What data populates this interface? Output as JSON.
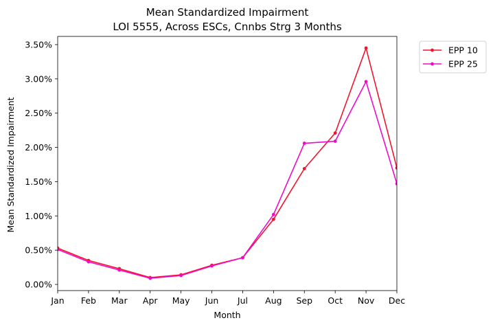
{
  "chart_data": {
    "type": "line",
    "title": "Mean Standardized Impairment",
    "subtitle": "LOI 5555, Across ESCs, Cnnbs Strg 3 Months",
    "xlabel": "Month",
    "ylabel": "Mean Standardized Impairment",
    "categories": [
      "Jan",
      "Feb",
      "Mar",
      "Apr",
      "May",
      "Jun",
      "Jul",
      "Aug",
      "Sep",
      "Oct",
      "Nov",
      "Dec"
    ],
    "y_ticks": [
      0.0,
      0.5,
      1.0,
      1.5,
      2.0,
      2.5,
      3.0,
      3.5
    ],
    "y_tick_labels": [
      "0.00%",
      "0.50%",
      "1.00%",
      "1.50%",
      "2.00%",
      "2.50%",
      "3.00%",
      "3.50%"
    ],
    "ylim": [
      -0.09,
      3.62
    ],
    "y_unit": "percent",
    "grid": false,
    "legend_position": "outside top-right",
    "series": [
      {
        "name": "EPP 10",
        "color": "#f0142c",
        "values": [
          0.53,
          0.35,
          0.23,
          0.1,
          0.14,
          0.28,
          0.39,
          0.95,
          1.69,
          2.21,
          3.45,
          1.7
        ]
      },
      {
        "name": "EPP 25",
        "color": "#f00ac8",
        "values": [
          0.51,
          0.33,
          0.21,
          0.09,
          0.13,
          0.27,
          0.39,
          1.02,
          2.06,
          2.09,
          2.96,
          1.47
        ]
      }
    ]
  }
}
